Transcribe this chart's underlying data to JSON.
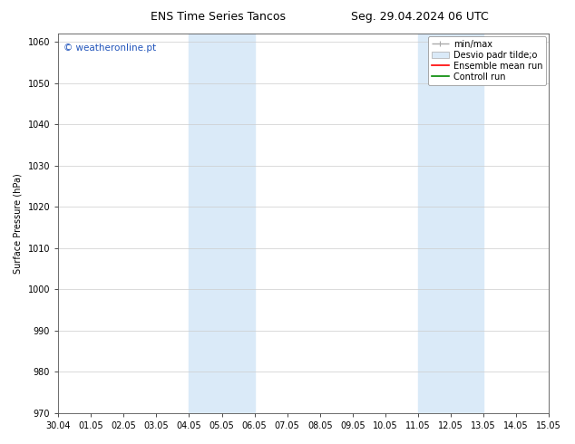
{
  "title_left": "ENS Time Series Tancos",
  "title_right": "Seg. 29.04.2024 06 UTC",
  "ylabel": "Surface Pressure (hPa)",
  "ylim": [
    970,
    1062
  ],
  "yticks": [
    970,
    980,
    990,
    1000,
    1010,
    1020,
    1030,
    1040,
    1050,
    1060
  ],
  "x_start": "2024-04-30",
  "x_end": "2024-05-15",
  "xtick_labels": [
    "30.04",
    "01.05",
    "02.05",
    "03.05",
    "04.05",
    "05.05",
    "06.05",
    "07.05",
    "08.05",
    "09.05",
    "10.05",
    "11.05",
    "12.05",
    "13.05",
    "14.05",
    "15.05"
  ],
  "shade_regions": [
    {
      "start": "2024-05-04",
      "end": "2024-05-06"
    },
    {
      "start": "2024-05-11",
      "end": "2024-05-13"
    }
  ],
  "background_color": "#ffffff",
  "shade_color": "#daeaf8",
  "watermark": "© weatheronline.pt",
  "watermark_color": "#2255bb",
  "grid_color": "#cccccc",
  "title_fontsize": 9,
  "axis_label_fontsize": 7,
  "tick_fontsize": 7,
  "legend_fontsize": 7,
  "minmax_color": "#aaaaaa",
  "desvio_color": "#daeaf8",
  "ensemble_color": "#ff0000",
  "control_color": "#008800"
}
